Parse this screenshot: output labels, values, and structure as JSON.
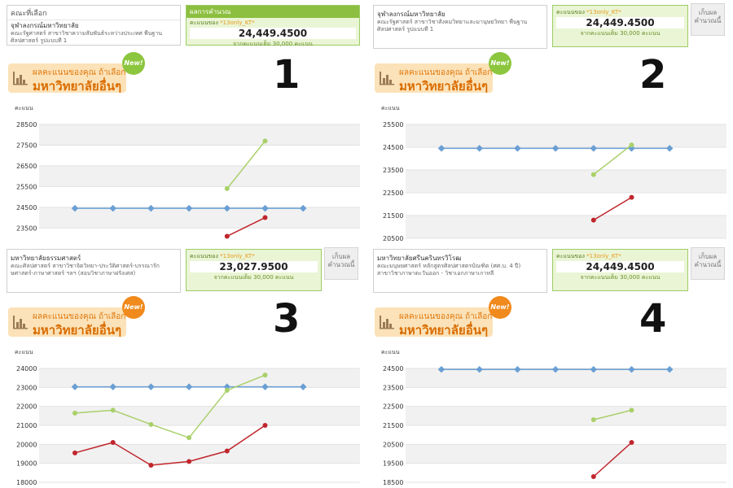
{
  "panels": [
    {
      "number": "1",
      "info_header": "คณะที่เลือก",
      "university": "จุฬาลงกรณ์มหาวิทยาลัย",
      "faculty_line1": "คณะรัฐศาสตร์ สาขาวิชาความสัมพันธ์ระหว่างประเทศ พื้นฐาน",
      "faculty_line2": "ศิลปศาสตร์ รูปแบบที่ 1",
      "score_header": "ผลการคำนวณ",
      "score_label": "คะแนนของ",
      "score_user": "*13only_KT*",
      "score_value": "24,449.4500",
      "score_full": "จากคะแนนเต็ม 30,000 คะแนน",
      "save_label": "",
      "banner_line1": "ผลคะแนนของคุณ ถ้าเลือก",
      "banner_line2": "มหาวิทยาลัยอื่นๆ",
      "new_badge": "New!",
      "new_color": "#8cc63f",
      "y_axis_label": "คะแนน",
      "chart_data": {
        "type": "line",
        "ylim": [
          23000,
          28500
        ],
        "yticks": [
          "28500",
          "27500",
          "26500",
          "25500",
          "24500",
          "23500"
        ],
        "series": [
          {
            "color": "#6a9fd4",
            "values": [
              24449,
              24449,
              24449,
              24449,
              24449,
              24449,
              24449
            ]
          },
          {
            "color": "#a9d06a",
            "values": [
              null,
              null,
              null,
              null,
              25400,
              27700,
              null
            ]
          },
          {
            "color": "#c0262c",
            "values": [
              null,
              null,
              null,
              null,
              23100,
              24000,
              null
            ]
          }
        ]
      }
    },
    {
      "number": "2",
      "info_header": "",
      "university": "จุฬาลงกรณ์มหาวิทยาลัย",
      "faculty_line1": "คณะรัฐศาสตร์ สาขาวิชาสังคมวิทยาและมานุษยวิทยา พื้นฐาน",
      "faculty_line2": "ศิลปศาสตร์ รูปแบบที่ 1",
      "score_header": "",
      "score_label": "คะแนนของ",
      "score_user": "*13only_KT*",
      "score_value": "24,449.4500",
      "score_full": "จากคะแนนเต็ม 30,000 คะแนน",
      "save_label": "เก็บผล คำนวณนี้",
      "banner_line1": "ผลคะแนนของคุณ ถ้าเลือก",
      "banner_line2": "มหาวิทยาลัยอื่นๆ",
      "new_badge": "New!",
      "new_color": "#8cc63f",
      "y_axis_label": "คะแนน",
      "chart_data": {
        "type": "line",
        "ylim": [
          20500,
          25500
        ],
        "yticks": [
          "25500",
          "24500",
          "23500",
          "22500",
          "21500",
          "20500"
        ],
        "series": [
          {
            "color": "#6a9fd4",
            "values": [
              24449,
              24449,
              24449,
              24449,
              24449,
              24449,
              24449
            ]
          },
          {
            "color": "#a9d06a",
            "values": [
              null,
              null,
              null,
              null,
              23300,
              24600,
              null
            ]
          },
          {
            "color": "#c0262c",
            "values": [
              null,
              null,
              null,
              null,
              21300,
              22300,
              null
            ]
          }
        ]
      }
    },
    {
      "number": "3",
      "info_header": "",
      "university": "มหาวิทยาลัยธรรมศาสตร์",
      "faculty_line1": "คณะศิลปศาสตร์ สาขาวิชาจิตวิทยา-ประวัติศาสตร์-บรรณารัก",
      "faculty_line2": "ษศาสตร์-ภาษาศาสตร์ ฯลฯ (สอบวิชาภาษาฝรั่งเศส)",
      "score_header": "",
      "score_label": "คะแนนของ",
      "score_user": "*13only_KT*",
      "score_value": "23,027.9500",
      "score_full": "จากคะแนนเต็ม 30,000 คะแนน",
      "save_label": "เก็บผล คำนวณนี้",
      "banner_line1": "ผลคะแนนของคุณ ถ้าเลือก",
      "banner_line2": "มหาวิทยาลัยอื่นๆ",
      "new_badge": "New!",
      "new_color": "#f08a1c",
      "y_axis_label": "คะแนน",
      "chart_data": {
        "type": "line",
        "ylim": [
          18000,
          24000
        ],
        "yticks": [
          "24000",
          "23000",
          "22000",
          "21000",
          "20000",
          "19000",
          "18000"
        ],
        "series": [
          {
            "color": "#6a9fd4",
            "values": [
              23028,
              23028,
              23028,
              23028,
              23028,
              23028,
              23028
            ]
          },
          {
            "color": "#a9d06a",
            "values": [
              21650,
              21800,
              21050,
              20350,
              22850,
              23650,
              null
            ]
          },
          {
            "color": "#c0262c",
            "values": [
              19550,
              20100,
              18900,
              19100,
              19650,
              21000,
              null
            ]
          }
        ]
      }
    },
    {
      "number": "4",
      "info_header": "",
      "university": "มหาวิทยาลัยศรีนครินทรวิโรฒ",
      "faculty_line1": "คณะมนุษยศาสตร์ หลักสูตรศิลปศาสตรบัณฑิต (ศศ.บ. 4 ปี)",
      "faculty_line2": "สาขาวิชาภาษาตะวันออก - วิชาเอกภาษาเกาหลี",
      "score_header": "",
      "score_label": "คะแนนของ",
      "score_user": "*13only_KT*",
      "score_value": "24,449.4500",
      "score_full": "จากคะแนนเต็ม 30,000 คะแนน",
      "save_label": "เก็บผล คำนวณนี้",
      "banner_line1": "ผลคะแนนของคุณ ถ้าเลือก",
      "banner_line2": "มหาวิทยาลัยอื่นๆ",
      "new_badge": "New!",
      "new_color": "#f08a1c",
      "y_axis_label": "คะแนน",
      "chart_data": {
        "type": "line",
        "ylim": [
          18500,
          24500
        ],
        "yticks": [
          "24500",
          "23500",
          "22500",
          "21500",
          "20500",
          "19500",
          "18500"
        ],
        "series": [
          {
            "color": "#6a9fd4",
            "values": [
              24449,
              24449,
              24449,
              24449,
              24449,
              24449,
              24449
            ]
          },
          {
            "color": "#a9d06a",
            "values": [
              null,
              null,
              null,
              null,
              21800,
              22300,
              null
            ]
          },
          {
            "color": "#c0262c",
            "values": [
              null,
              null,
              null,
              null,
              18800,
              20600,
              null
            ]
          }
        ]
      }
    }
  ]
}
